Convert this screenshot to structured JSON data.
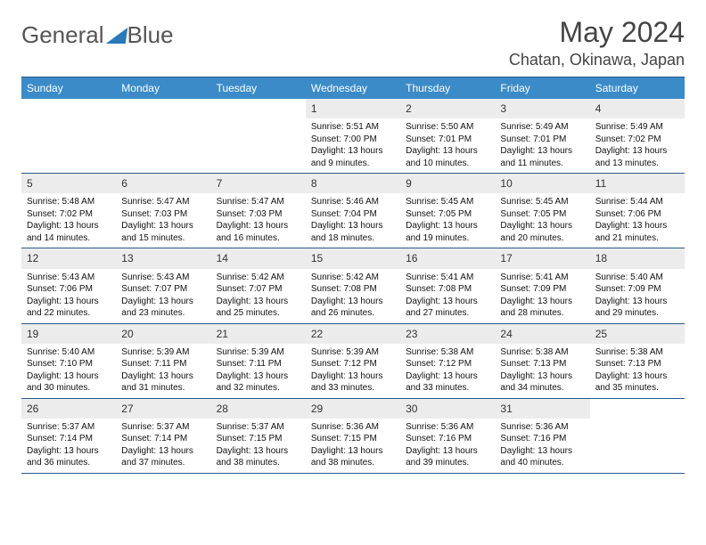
{
  "logo": {
    "text1": "General",
    "text2": "Blue"
  },
  "title": {
    "month": "May 2024",
    "location": "Chatan, Okinawa, Japan"
  },
  "colors": {
    "header_bg": "#3b8bc8",
    "border": "#2a5a8a",
    "num_bg": "#ececec",
    "logo_accent": "#2a7ab9",
    "text": "#111111"
  },
  "day_names": [
    "Sunday",
    "Monday",
    "Tuesday",
    "Wednesday",
    "Thursday",
    "Friday",
    "Saturday"
  ],
  "weeks": [
    [
      {
        "n": "",
        "sr": "",
        "ss": "",
        "dl": ""
      },
      {
        "n": "",
        "sr": "",
        "ss": "",
        "dl": ""
      },
      {
        "n": "",
        "sr": "",
        "ss": "",
        "dl": ""
      },
      {
        "n": "1",
        "sr": "Sunrise: 5:51 AM",
        "ss": "Sunset: 7:00 PM",
        "dl": "Daylight: 13 hours and 9 minutes."
      },
      {
        "n": "2",
        "sr": "Sunrise: 5:50 AM",
        "ss": "Sunset: 7:01 PM",
        "dl": "Daylight: 13 hours and 10 minutes."
      },
      {
        "n": "3",
        "sr": "Sunrise: 5:49 AM",
        "ss": "Sunset: 7:01 PM",
        "dl": "Daylight: 13 hours and 11 minutes."
      },
      {
        "n": "4",
        "sr": "Sunrise: 5:49 AM",
        "ss": "Sunset: 7:02 PM",
        "dl": "Daylight: 13 hours and 13 minutes."
      }
    ],
    [
      {
        "n": "5",
        "sr": "Sunrise: 5:48 AM",
        "ss": "Sunset: 7:02 PM",
        "dl": "Daylight: 13 hours and 14 minutes."
      },
      {
        "n": "6",
        "sr": "Sunrise: 5:47 AM",
        "ss": "Sunset: 7:03 PM",
        "dl": "Daylight: 13 hours and 15 minutes."
      },
      {
        "n": "7",
        "sr": "Sunrise: 5:47 AM",
        "ss": "Sunset: 7:03 PM",
        "dl": "Daylight: 13 hours and 16 minutes."
      },
      {
        "n": "8",
        "sr": "Sunrise: 5:46 AM",
        "ss": "Sunset: 7:04 PM",
        "dl": "Daylight: 13 hours and 18 minutes."
      },
      {
        "n": "9",
        "sr": "Sunrise: 5:45 AM",
        "ss": "Sunset: 7:05 PM",
        "dl": "Daylight: 13 hours and 19 minutes."
      },
      {
        "n": "10",
        "sr": "Sunrise: 5:45 AM",
        "ss": "Sunset: 7:05 PM",
        "dl": "Daylight: 13 hours and 20 minutes."
      },
      {
        "n": "11",
        "sr": "Sunrise: 5:44 AM",
        "ss": "Sunset: 7:06 PM",
        "dl": "Daylight: 13 hours and 21 minutes."
      }
    ],
    [
      {
        "n": "12",
        "sr": "Sunrise: 5:43 AM",
        "ss": "Sunset: 7:06 PM",
        "dl": "Daylight: 13 hours and 22 minutes."
      },
      {
        "n": "13",
        "sr": "Sunrise: 5:43 AM",
        "ss": "Sunset: 7:07 PM",
        "dl": "Daylight: 13 hours and 23 minutes."
      },
      {
        "n": "14",
        "sr": "Sunrise: 5:42 AM",
        "ss": "Sunset: 7:07 PM",
        "dl": "Daylight: 13 hours and 25 minutes."
      },
      {
        "n": "15",
        "sr": "Sunrise: 5:42 AM",
        "ss": "Sunset: 7:08 PM",
        "dl": "Daylight: 13 hours and 26 minutes."
      },
      {
        "n": "16",
        "sr": "Sunrise: 5:41 AM",
        "ss": "Sunset: 7:08 PM",
        "dl": "Daylight: 13 hours and 27 minutes."
      },
      {
        "n": "17",
        "sr": "Sunrise: 5:41 AM",
        "ss": "Sunset: 7:09 PM",
        "dl": "Daylight: 13 hours and 28 minutes."
      },
      {
        "n": "18",
        "sr": "Sunrise: 5:40 AM",
        "ss": "Sunset: 7:09 PM",
        "dl": "Daylight: 13 hours and 29 minutes."
      }
    ],
    [
      {
        "n": "19",
        "sr": "Sunrise: 5:40 AM",
        "ss": "Sunset: 7:10 PM",
        "dl": "Daylight: 13 hours and 30 minutes."
      },
      {
        "n": "20",
        "sr": "Sunrise: 5:39 AM",
        "ss": "Sunset: 7:11 PM",
        "dl": "Daylight: 13 hours and 31 minutes."
      },
      {
        "n": "21",
        "sr": "Sunrise: 5:39 AM",
        "ss": "Sunset: 7:11 PM",
        "dl": "Daylight: 13 hours and 32 minutes."
      },
      {
        "n": "22",
        "sr": "Sunrise: 5:39 AM",
        "ss": "Sunset: 7:12 PM",
        "dl": "Daylight: 13 hours and 33 minutes."
      },
      {
        "n": "23",
        "sr": "Sunrise: 5:38 AM",
        "ss": "Sunset: 7:12 PM",
        "dl": "Daylight: 13 hours and 33 minutes."
      },
      {
        "n": "24",
        "sr": "Sunrise: 5:38 AM",
        "ss": "Sunset: 7:13 PM",
        "dl": "Daylight: 13 hours and 34 minutes."
      },
      {
        "n": "25",
        "sr": "Sunrise: 5:38 AM",
        "ss": "Sunset: 7:13 PM",
        "dl": "Daylight: 13 hours and 35 minutes."
      }
    ],
    [
      {
        "n": "26",
        "sr": "Sunrise: 5:37 AM",
        "ss": "Sunset: 7:14 PM",
        "dl": "Daylight: 13 hours and 36 minutes."
      },
      {
        "n": "27",
        "sr": "Sunrise: 5:37 AM",
        "ss": "Sunset: 7:14 PM",
        "dl": "Daylight: 13 hours and 37 minutes."
      },
      {
        "n": "28",
        "sr": "Sunrise: 5:37 AM",
        "ss": "Sunset: 7:15 PM",
        "dl": "Daylight: 13 hours and 38 minutes."
      },
      {
        "n": "29",
        "sr": "Sunrise: 5:36 AM",
        "ss": "Sunset: 7:15 PM",
        "dl": "Daylight: 13 hours and 38 minutes."
      },
      {
        "n": "30",
        "sr": "Sunrise: 5:36 AM",
        "ss": "Sunset: 7:16 PM",
        "dl": "Daylight: 13 hours and 39 minutes."
      },
      {
        "n": "31",
        "sr": "Sunrise: 5:36 AM",
        "ss": "Sunset: 7:16 PM",
        "dl": "Daylight: 13 hours and 40 minutes."
      },
      {
        "n": "",
        "sr": "",
        "ss": "",
        "dl": ""
      }
    ]
  ]
}
